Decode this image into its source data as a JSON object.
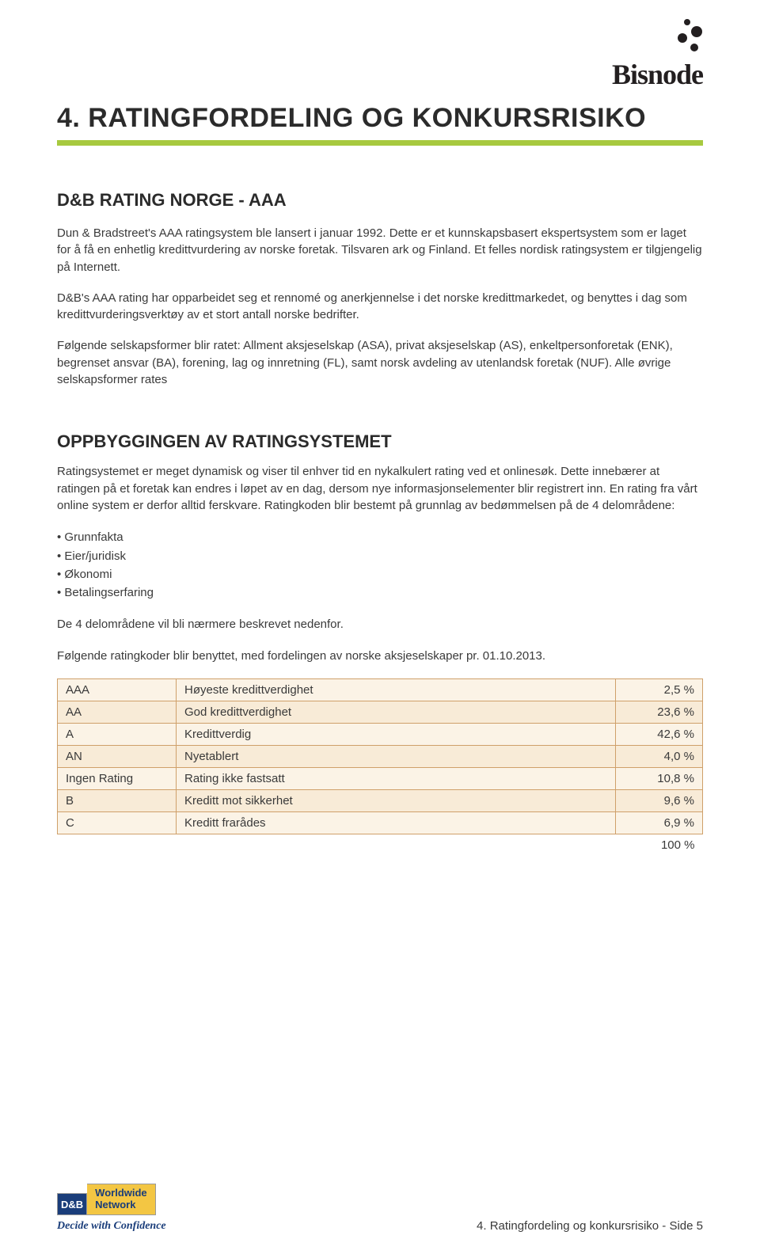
{
  "logo": {
    "brand": "Bisnode"
  },
  "heading": "4. RATINGFORDELING OG KONKURSRISIKO",
  "rule_color": "#a7c93f",
  "section1": {
    "title": "D&B RATING NORGE - AAA",
    "para1": "Dun & Bradstreet's AAA ratingsystem ble lansert i januar 1992. Dette er et kunnskapsbasert ekspertsystem som er laget for å få en enhetlig kredittvurdering av norske foretak. Tilsvaren ark og Finland. Et felles nordisk ratingsystem er tilgjengelig på Internett.",
    "para2": "D&B's AAA rating har opparbeidet seg et rennomé og anerkjennelse i det norske kredittmarkedet, og benyttes i dag som kredittvurderingsverktøy av et stort antall norske bedrifter.",
    "para3": "Følgende selskapsformer blir ratet: Allment aksjeselskap (ASA), privat aksjeselskap (AS), enkeltpersonforetak (ENK), begrenset ansvar (BA), forening, lag og innretning (FL), samt norsk avdeling av utenlandsk foretak (NUF). Alle øvrige selskapsformer rates"
  },
  "section2": {
    "title": "OPPBYGGINGEN AV RATINGSYSTEMET",
    "para1": "Ratingsystemet er meget dynamisk og viser til enhver tid en nykalkulert rating ved et onlinesøk. Dette innebærer at ratingen på et foretak kan endres i løpet av en dag, dersom nye informasjonselementer blir registrert inn. En rating fra vårt online system er derfor alltid ferskvare. Ratingkoden blir bestemt på grunnlag av bedømmelsen på de 4 delområdene:",
    "bullets": [
      "Grunnfakta",
      "Eier/juridisk",
      "Økonomi",
      "Betalingserfaring"
    ],
    "para2": "De 4 delområdene vil bli nærmere beskrevet nedenfor.",
    "para3": "Følgende ratingkoder blir benyttet, med fordelingen av norske aksjeselskaper pr. 01.10.2013."
  },
  "rating_table": {
    "rows": [
      {
        "code": "AAA",
        "desc": "Høyeste kredittverdighet",
        "pct": "2,5 %",
        "bg": "#fbf3e6"
      },
      {
        "code": "AA",
        "desc": "God kredittverdighet",
        "pct": "23,6 %",
        "bg": "#f8ebd7"
      },
      {
        "code": "A",
        "desc": "Kredittverdig",
        "pct": "42,6 %",
        "bg": "#fbf3e6"
      },
      {
        "code": "AN",
        "desc": "Nyetablert",
        "pct": "4,0 %",
        "bg": "#f8ebd7"
      },
      {
        "code": "Ingen Rating",
        "desc": "Rating ikke fastsatt",
        "pct": "10,8 %",
        "bg": "#fbf3e6"
      },
      {
        "code": "B",
        "desc": "Kreditt mot sikkerhet",
        "pct": "9,6 %",
        "bg": "#f8ebd7"
      },
      {
        "code": "C",
        "desc": "Kreditt frarådes",
        "pct": "6,9 %",
        "bg": "#fbf3e6"
      }
    ],
    "total": "100 %",
    "border_color": "#cfa06a"
  },
  "footer": {
    "db": "D&B",
    "wn_line1": "Worldwide",
    "wn_line2": "Network",
    "tagline": "Decide with Confidence",
    "pageref": "4. Ratingfordeling og konkursrisiko - Side 5"
  }
}
